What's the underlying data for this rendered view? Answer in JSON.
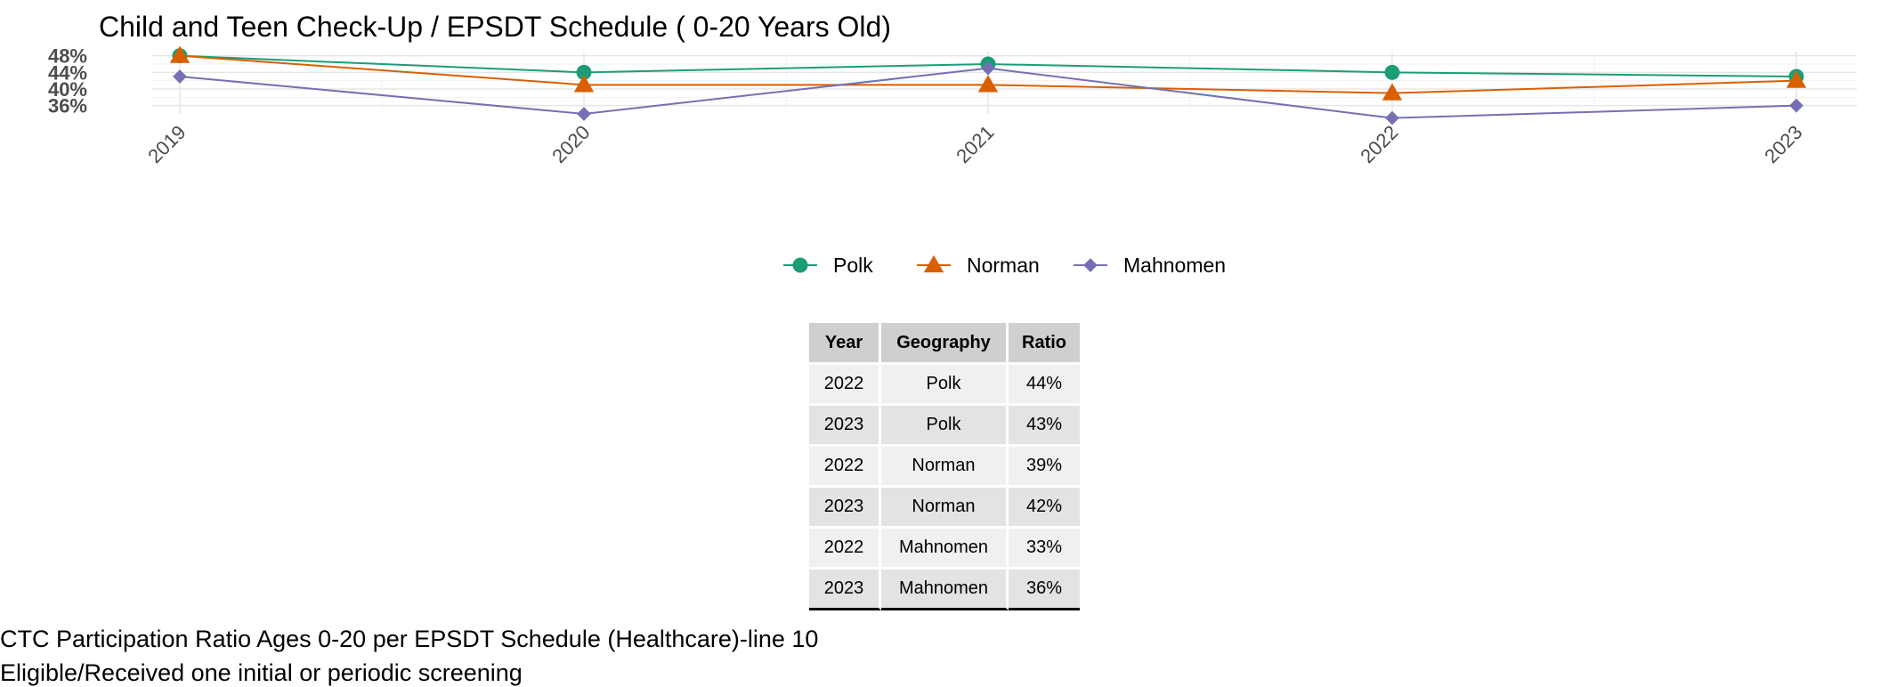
{
  "chart_data": {
    "type": "line",
    "title": "Child and Teen Check-Up / EPSDT Schedule ( 0-20  Years Old)",
    "categories": [
      "2019",
      "2020",
      "2021",
      "2022",
      "2023"
    ],
    "y_ticks": [
      "36%",
      "40%",
      "44%",
      "48%"
    ],
    "ylim": [
      34,
      49
    ],
    "grid": true,
    "legend_position": "bottom",
    "series": [
      {
        "name": "Polk",
        "values": [
          48,
          44,
          46,
          44,
          43
        ],
        "color": "#1b9e77",
        "marker": "circle"
      },
      {
        "name": "Norman",
        "values": [
          48,
          41,
          41,
          39,
          42
        ],
        "color": "#d95f02",
        "marker": "triangle"
      },
      {
        "name": "Mahnomen",
        "values": [
          43,
          34,
          45,
          33,
          36
        ],
        "color": "#7570b3",
        "marker": "diamond"
      }
    ]
  },
  "table": {
    "headers": {
      "year": "Year",
      "geography": "Geography",
      "ratio": "Ratio"
    },
    "rows": [
      {
        "year": "2022",
        "geography": "Polk",
        "ratio": "44%"
      },
      {
        "year": "2023",
        "geography": "Polk",
        "ratio": "43%"
      },
      {
        "year": "2022",
        "geography": "Norman",
        "ratio": "39%"
      },
      {
        "year": "2023",
        "geography": "Norman",
        "ratio": "42%"
      },
      {
        "year": "2022",
        "geography": "Mahnomen",
        "ratio": "33%"
      },
      {
        "year": "2023",
        "geography": "Mahnomen",
        "ratio": "36%"
      }
    ]
  },
  "caption": {
    "line1": "CTC Participation Ratio Ages 0-20 per EPSDT Schedule (Healthcare)-line 10",
    "line2": "Eligible/Received one initial or periodic screening"
  }
}
